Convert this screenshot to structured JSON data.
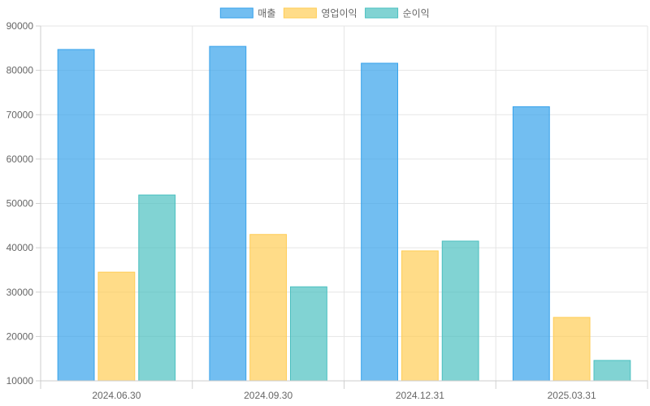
{
  "chart_data": {
    "type": "bar",
    "categories": [
      "2024.06.30",
      "2024.09.30",
      "2024.12.31",
      "2025.03.31"
    ],
    "series": [
      {
        "name": "매출",
        "values": [
          84700,
          85400,
          81600,
          71800
        ],
        "fill": "#36a2eb",
        "stroke": "#36a2eb"
      },
      {
        "name": "영업이익",
        "values": [
          34500,
          43000,
          39300,
          24300
        ],
        "fill": "#ffcd56",
        "stroke": "#ffcd56"
      },
      {
        "name": "순이익",
        "values": [
          51900,
          31200,
          41500,
          14600
        ],
        "fill": "#4bc0c0",
        "stroke": "#4bc0c0"
      }
    ],
    "ylim": [
      10000,
      90000
    ],
    "yticks": [
      10000,
      20000,
      30000,
      40000,
      50000,
      60000,
      70000,
      80000,
      90000
    ],
    "grid": true,
    "legend": "top-center"
  }
}
